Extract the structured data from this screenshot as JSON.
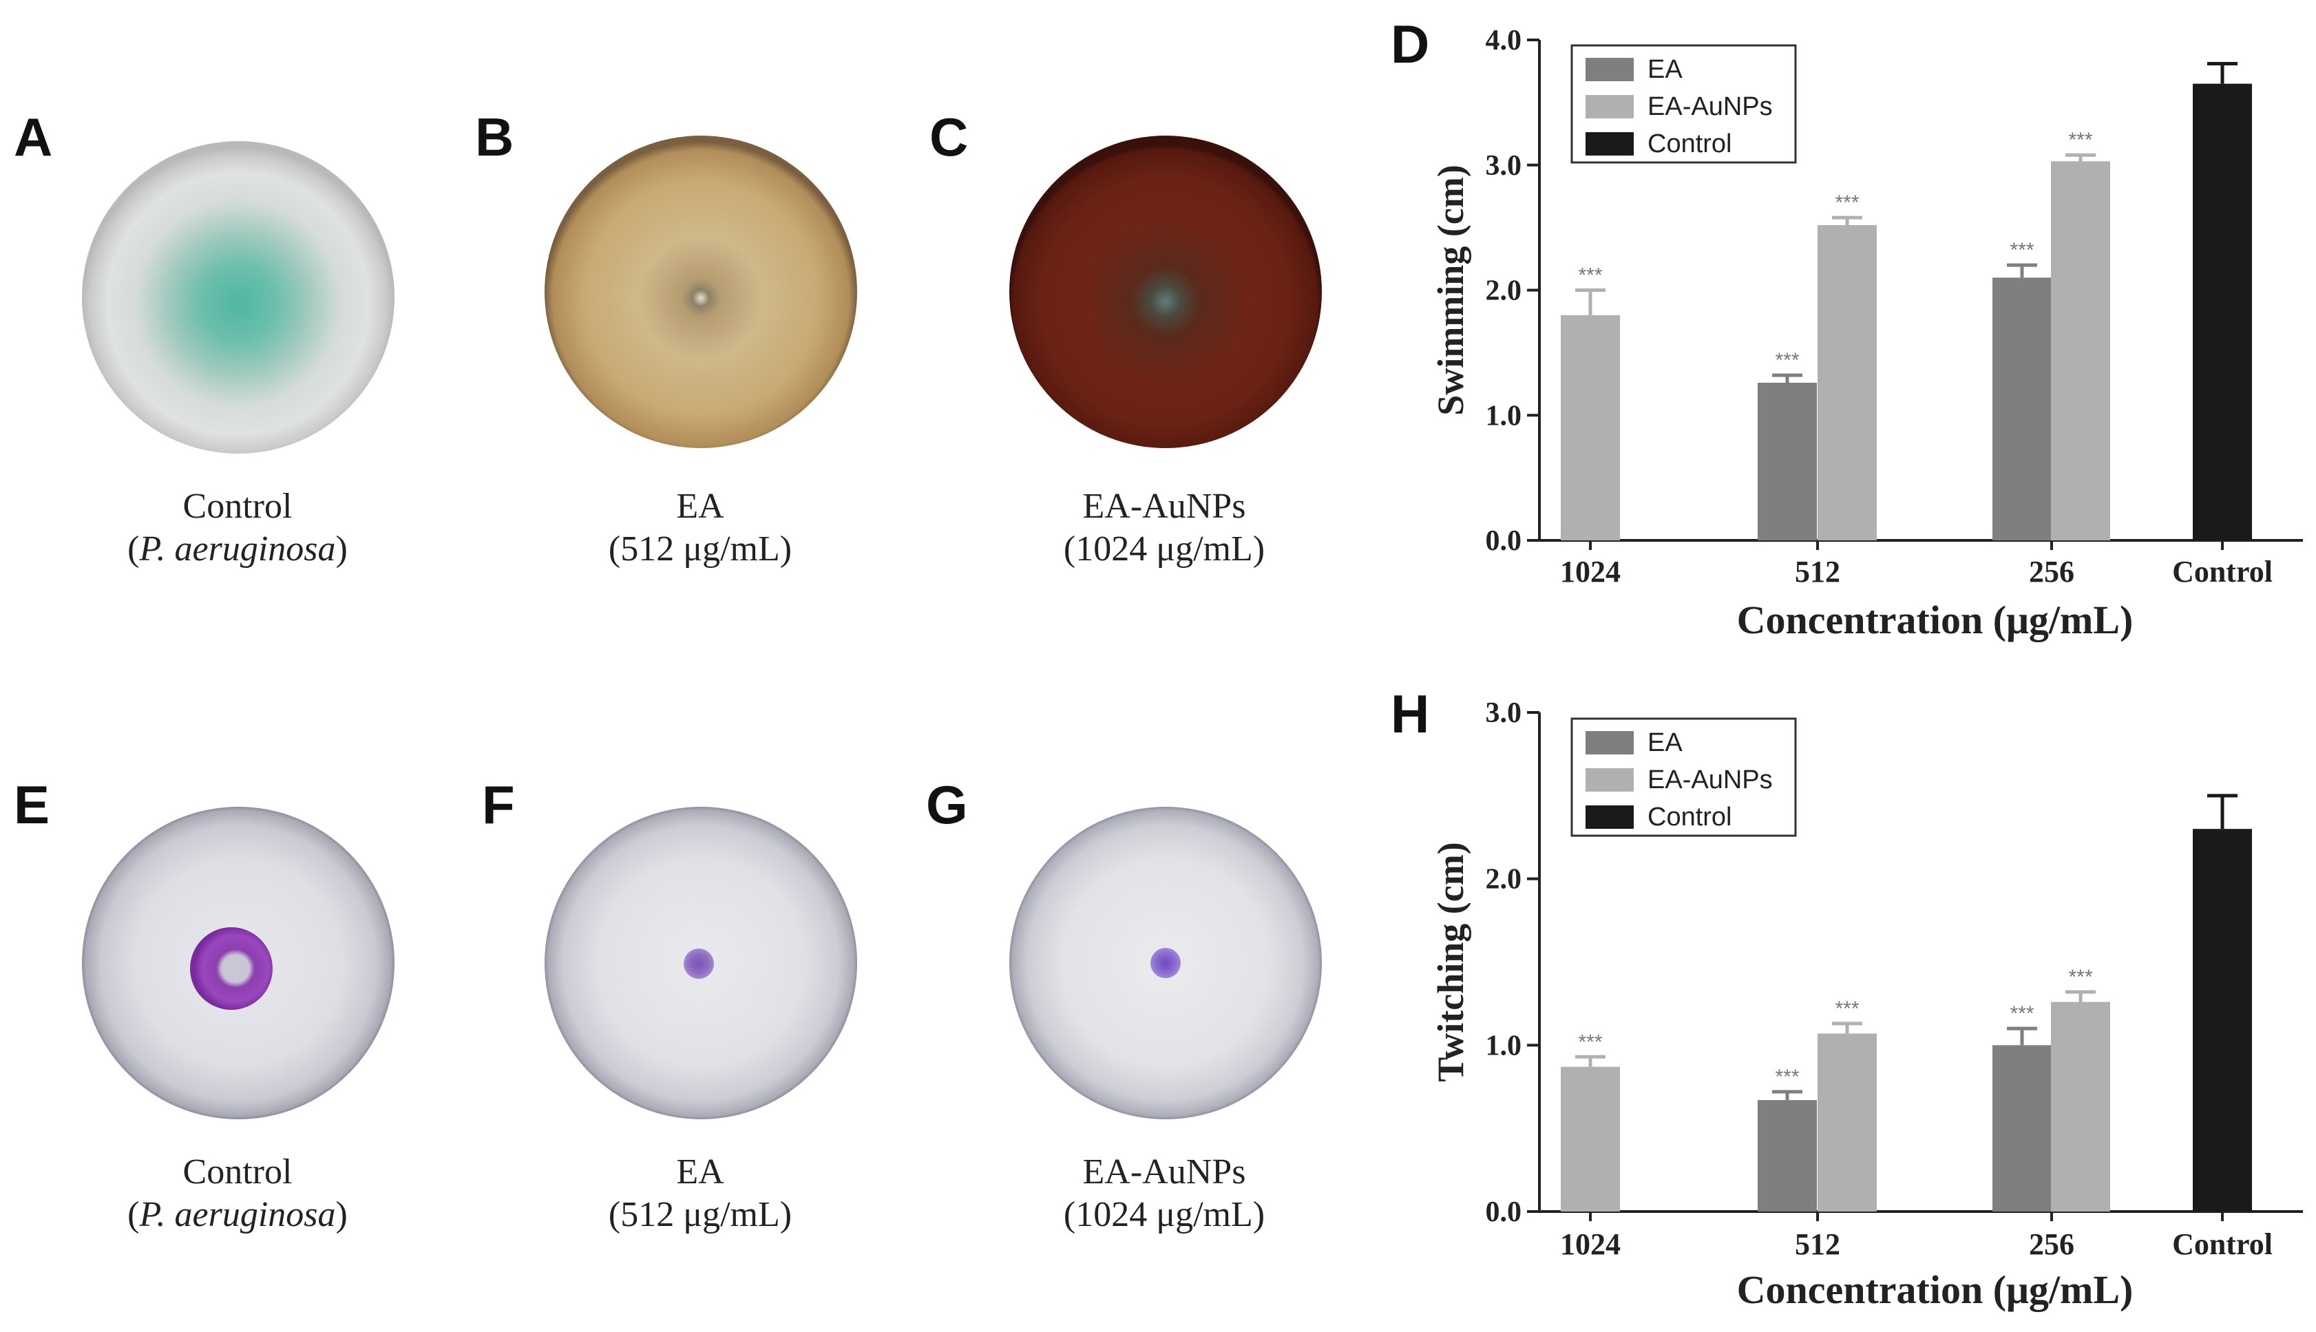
{
  "plates": {
    "A": {
      "letter": "A",
      "label1": "Control",
      "label2": "(P. aeruginosa)",
      "open": "(",
      "species": "P. aeruginosa",
      "close": ")"
    },
    "B": {
      "letter": "B",
      "label1": "EA",
      "label2": "(512 μg/mL)"
    },
    "C": {
      "letter": "C",
      "label1": "EA-AuNPs",
      "label2": "(1024 μg/mL)"
    },
    "E": {
      "letter": "E",
      "label1": "Control",
      "label2": "(P. aeruginosa)",
      "open": "(",
      "species": "P. aeruginosa",
      "close": ")"
    },
    "F": {
      "letter": "F",
      "label1": "EA",
      "label2": "(512 μg/mL)"
    },
    "G": {
      "letter": "G",
      "label1": "EA-AuNPs",
      "label2": "(1024 μg/mL)"
    }
  },
  "colors": {
    "ea": "#7f7f7f",
    "ea_aunps": "#b0b0b0",
    "control": "#1a1a1a"
  },
  "chart_data": [
    {
      "panel": "D",
      "type": "bar",
      "title": "",
      "xlabel": "Concentration (μg/mL)",
      "ylabel": "Swimming (cm)",
      "ylim": [
        0,
        4.0
      ],
      "yticks": [
        "0.0",
        "1.0",
        "2.0",
        "3.0",
        "4.0"
      ],
      "categories": [
        "1024",
        "512",
        "256",
        "Control"
      ],
      "legend": [
        "EA",
        "EA-AuNPs",
        "Control"
      ],
      "legend_position": "top-left",
      "bars": [
        {
          "category": "1024",
          "series": "EA-AuNPs",
          "value": 1.8,
          "error": 0.2,
          "sig": "***"
        },
        {
          "category": "512",
          "series": "EA",
          "value": 1.26,
          "error": 0.06,
          "sig": "***"
        },
        {
          "category": "512",
          "series": "EA-AuNPs",
          "value": 2.52,
          "error": 0.06,
          "sig": "***"
        },
        {
          "category": "256",
          "series": "EA",
          "value": 2.1,
          "error": 0.1,
          "sig": "***"
        },
        {
          "category": "256",
          "series": "EA-AuNPs",
          "value": 3.03,
          "error": 0.05,
          "sig": "***"
        },
        {
          "category": "Control",
          "series": "Control",
          "value": 3.65,
          "error": 0.16,
          "sig": ""
        }
      ]
    },
    {
      "panel": "H",
      "type": "bar",
      "title": "",
      "xlabel": "Concentration (μg/mL)",
      "ylabel": "Twitching (cm)",
      "ylim": [
        0,
        3.0
      ],
      "yticks": [
        "0.0",
        "1.0",
        "2.0",
        "3.0"
      ],
      "categories": [
        "1024",
        "512",
        "256",
        "Control"
      ],
      "legend": [
        "EA",
        "EA-AuNPs",
        "Control"
      ],
      "legend_position": "top-left",
      "bars": [
        {
          "category": "1024",
          "series": "EA-AuNPs",
          "value": 0.87,
          "error": 0.06,
          "sig": "***"
        },
        {
          "category": "512",
          "series": "EA",
          "value": 0.67,
          "error": 0.05,
          "sig": "***"
        },
        {
          "category": "512",
          "series": "EA-AuNPs",
          "value": 1.07,
          "error": 0.06,
          "sig": "***"
        },
        {
          "category": "256",
          "series": "EA",
          "value": 1.0,
          "error": 0.1,
          "sig": "***"
        },
        {
          "category": "256",
          "series": "EA-AuNPs",
          "value": 1.26,
          "error": 0.06,
          "sig": "***"
        },
        {
          "category": "Control",
          "series": "Control",
          "value": 2.3,
          "error": 0.2,
          "sig": ""
        }
      ]
    }
  ]
}
